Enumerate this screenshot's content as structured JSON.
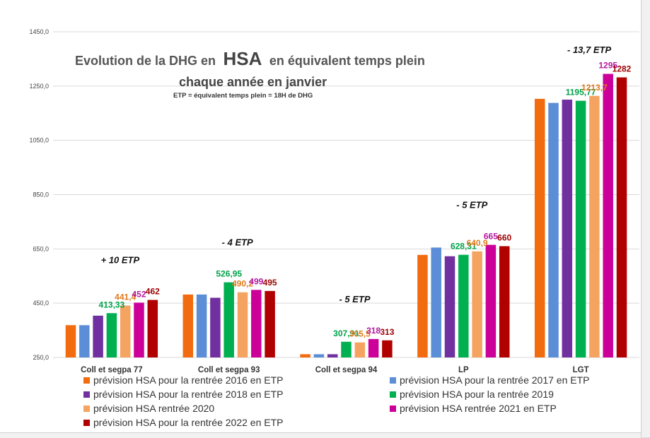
{
  "chart_data": {
    "type": "bar",
    "title_part1": "Evolution de la DHG en",
    "title_highlight": "HSA",
    "title_part2": "en équivalent temps plein",
    "title_line2": "chaque année en janvier",
    "subtitle": "ETP = équivalent temps plein = 18H de DHG",
    "ylim": [
      250,
      1450
    ],
    "yticks": [
      "250,0",
      "450,0",
      "650,0",
      "850,0",
      "1050,0",
      "1250,0",
      "1450,0"
    ],
    "ytick_values": [
      250,
      450,
      650,
      850,
      1050,
      1250,
      1450
    ],
    "grid": true,
    "legend_position": "bottom",
    "categories": [
      "Coll et segpa 77",
      "Coll et segpa 93",
      "Coll et segpa 94",
      "LP",
      "LGT"
    ],
    "series": [
      {
        "name": "prévision HSA pour la rentrée 2016 en ETP",
        "color": "#f26b0f",
        "values": [
          369,
          482,
          262,
          628,
          1203
        ],
        "labels": [
          "",
          "",
          "",
          "",
          ""
        ]
      },
      {
        "name": "prévision HSA pour la rentrée 2017 en ETP",
        "color": "#5b8ed6",
        "values": [
          369,
          482,
          262,
          655,
          1188
        ],
        "labels": [
          "",
          "",
          "",
          "",
          ""
        ]
      },
      {
        "name": "prévision HSA pour la rentrée 2018 en ETP",
        "color": "#7030a0",
        "values": [
          404,
          470,
          262,
          623,
          1200
        ],
        "labels": [
          "",
          "",
          "",
          "",
          ""
        ]
      },
      {
        "name": "prévision HSA pour la rentrée 2019",
        "color": "#00b050",
        "values": [
          413.33,
          526.95,
          307.91,
          628.31,
          1195.77
        ],
        "labels": [
          "413,33",
          "526,95",
          "307,91",
          "628,31",
          "1195,77"
        ]
      },
      {
        "name": "prévision HSA rentrée 2020",
        "color": "#f4a460",
        "values": [
          441.4,
          490.2,
          305.5,
          640.9,
          1213.7
        ],
        "labels": [
          "441,4",
          "490,2",
          "305,5",
          "640,9",
          "1213,7"
        ]
      },
      {
        "name": "prévision HSA rentrée 2021 en ETP",
        "color": "#cc0099",
        "values": [
          452,
          499,
          318,
          665,
          1295
        ],
        "labels": [
          "452",
          "499",
          "318",
          "665",
          "1295"
        ]
      },
      {
        "name": "prévision HSA pour la rentrée 2022 en ETP",
        "color": "#b00000",
        "values": [
          462,
          495,
          313,
          660,
          1282
        ],
        "labels": [
          "462",
          "495",
          "313",
          "660",
          "1282"
        ]
      }
    ],
    "label_colors": [
      "",
      "",
      "",
      "#00a24a",
      "#e07b1e",
      "#b5179e",
      "#9c0000"
    ],
    "annotations": [
      {
        "category": 0,
        "text": "+  10 ETP"
      },
      {
        "category": 1,
        "text": "- 4 ETP"
      },
      {
        "category": 2,
        "text": "- 5 ETP"
      },
      {
        "category": 3,
        "text": "- 5 ETP"
      },
      {
        "category": 4,
        "text": "- 13,7 ETP"
      }
    ]
  }
}
